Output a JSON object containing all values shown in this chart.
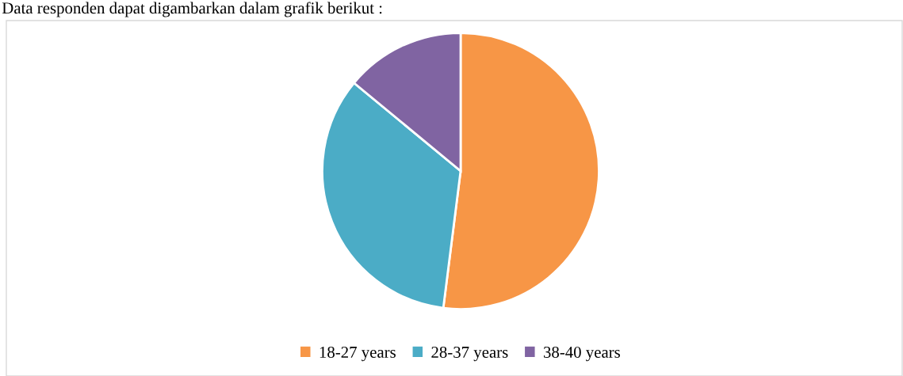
{
  "chart_data": {
    "type": "pie",
    "title": "Data responden dapat digambarkan dalam grafik berikut :",
    "categories": [
      "18-27 years",
      "28-37 years",
      "38-40 years"
    ],
    "values": [
      52,
      34,
      14
    ],
    "colors": [
      "#f79646",
      "#4bacc6",
      "#8064a2"
    ],
    "legend": "bottom"
  }
}
